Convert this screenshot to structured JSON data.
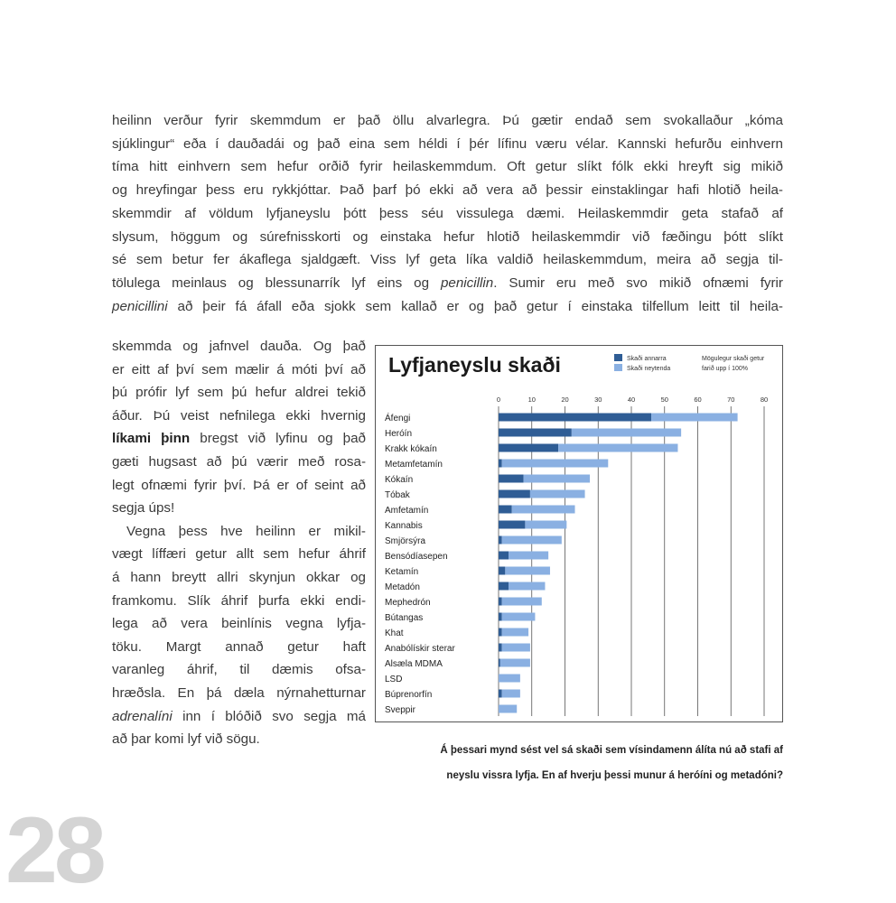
{
  "body_text": {
    "full_lines": [
      {
        "segments": [
          {
            "text": "heilinn verður fyrir skemmdum er það öllu alvarlegra. Þú gætir endað sem svokallaður „kóma"
          }
        ]
      },
      {
        "segments": [
          {
            "text": "sjúklingur“ eða í dauðadái og það eina sem héldi í þér lífinu væru vélar. Kannski hefurðu einhvern"
          }
        ]
      },
      {
        "segments": [
          {
            "text": "tíma hitt einhvern sem hefur orðið fyrir heilaskemmdum. Oft getur slíkt fólk ekki hreyft sig mikið"
          }
        ]
      },
      {
        "segments": [
          {
            "text": "og hreyfingar þess eru rykkjóttar. Það þarf þó ekki að vera að þessir einstaklingar hafi hlotið heila-"
          }
        ]
      },
      {
        "segments": [
          {
            "text": "skemmdir af völdum lyfjaneyslu þótt þess séu vissulega dæmi. Heilaskemmdir geta stafað af"
          }
        ]
      },
      {
        "segments": [
          {
            "text": "slysum, höggum og súrefnisskorti og einstaka hefur hlotið heilaskemmdir við fæðingu þótt slíkt"
          }
        ]
      },
      {
        "segments": [
          {
            "text": "sé sem betur fer ákaflega sjaldgæft. Viss lyf geta líka valdið heilaskemmdum, meira að segja til-"
          }
        ]
      },
      {
        "segments": [
          {
            "text": "tölulega meinlaus og blessunarrík lyf eins og "
          },
          {
            "text": "penicillin",
            "em": true
          },
          {
            "text": ". Sumir eru með svo mikið ofnæmi fyrir"
          }
        ]
      },
      {
        "segments": [
          {
            "text": "penicillini",
            "em": true
          },
          {
            "text": " að þeir fá áfall eða sjokk sem kallað er og það getur í einstaka tilfellum leitt til heila-"
          }
        ]
      }
    ],
    "column_lines": [
      {
        "segments": [
          {
            "text": "skemmda og jafnvel dauða. Og það"
          }
        ]
      },
      {
        "segments": [
          {
            "text": "er eitt af því sem mælir á móti því að"
          }
        ]
      },
      {
        "segments": [
          {
            "text": "þú prófir lyf sem þú hefur aldrei tekið"
          }
        ]
      },
      {
        "segments": [
          {
            "text": "áður. Þú veist nefnilega ekki hvernig"
          }
        ]
      },
      {
        "segments": [
          {
            "text": "líkami þinn",
            "strong": true
          },
          {
            "text": " bregst við lyfinu og það"
          }
        ]
      },
      {
        "segments": [
          {
            "text": "gæti hugsast að þú værir með rosa-"
          }
        ]
      },
      {
        "segments": [
          {
            "text": "legt ofnæmi fyrir því. Þá er of seint að"
          }
        ]
      },
      {
        "segments": [
          {
            "text": "segja úps!"
          }
        ],
        "last": true
      },
      {
        "segments": [
          {
            "text": "Vegna þess hve heilinn er mikil-"
          }
        ],
        "indent": true
      },
      {
        "segments": [
          {
            "text": "vægt líffæri getur allt sem hefur áhrif"
          }
        ]
      },
      {
        "segments": [
          {
            "text": "á hann breytt allri skynjun okkar og"
          }
        ]
      },
      {
        "segments": [
          {
            "text": "framkomu. Slík áhrif þurfa ekki endi-"
          }
        ]
      },
      {
        "segments": [
          {
            "text": "lega að vera beinlínis vegna lyfja-"
          }
        ]
      },
      {
        "segments": [
          {
            "text": "töku. Margt annað getur haft"
          }
        ]
      },
      {
        "segments": [
          {
            "text": "varanleg áhrif, til dæmis ofsa-"
          }
        ]
      },
      {
        "segments": [
          {
            "text": "hræðsla. En þá dæla nýrnahetturnar"
          }
        ]
      },
      {
        "segments": [
          {
            "text": "adrenalíni",
            "em": true
          },
          {
            "text": " inn í blóðið svo segja má"
          }
        ]
      },
      {
        "segments": [
          {
            "text": "að þar komi lyf við sögu."
          }
        ],
        "last": true
      }
    ]
  },
  "caption": {
    "line1": "Á þessari mynd sést vel sá skaði sem vísindamenn álíta nú að stafi af",
    "line2": "neyslu vissra lyfja. En af hverju þessi munur á heróíni og metadóni?"
  },
  "page_number": "28",
  "chart_data": {
    "type": "bar",
    "orientation": "horizontal",
    "stacked": true,
    "title": "Lyfjaneyslu skaði",
    "legend": [
      {
        "label": "Skaði annarra",
        "color": "#2f5d95"
      },
      {
        "label": "Skaði neytenda",
        "color": "#8ab0e2"
      }
    ],
    "legend_note": [
      "Mögulegur skaði getur",
      "farið upp í 100%"
    ],
    "legend_position": "top-right",
    "x_ticks": [
      0,
      10,
      20,
      30,
      40,
      50,
      60,
      70,
      80
    ],
    "xlim": [
      0,
      80
    ],
    "grid": true,
    "categories": [
      "Áfengi",
      "Heróín",
      "Krakk kókaín",
      "Metamfetamín",
      "Kókaín",
      "Tóbak",
      "Amfetamín",
      "Kannabis",
      "Smjörsýra",
      "Bensódíasepen",
      "Ketamín",
      "Metadón",
      "Mephedrón",
      "Bútangas",
      "Khat",
      "Anabólískir sterar",
      "Alsæla MDMA",
      "LSD",
      "Búprenorfín",
      "Sveppir"
    ],
    "series": [
      {
        "name": "Skaði annarra",
        "values": [
          46,
          22,
          18,
          1,
          7.5,
          9.5,
          4,
          8,
          1,
          3,
          2,
          3,
          1,
          1,
          1,
          1,
          0.5,
          0,
          1,
          0
        ]
      },
      {
        "name": "Skaði neytenda",
        "values": [
          26,
          33,
          36,
          32,
          20,
          16.5,
          19,
          12.5,
          18,
          12,
          13.5,
          11,
          12,
          10,
          8,
          8.5,
          9,
          6.5,
          5.5,
          5.5
        ]
      }
    ]
  }
}
